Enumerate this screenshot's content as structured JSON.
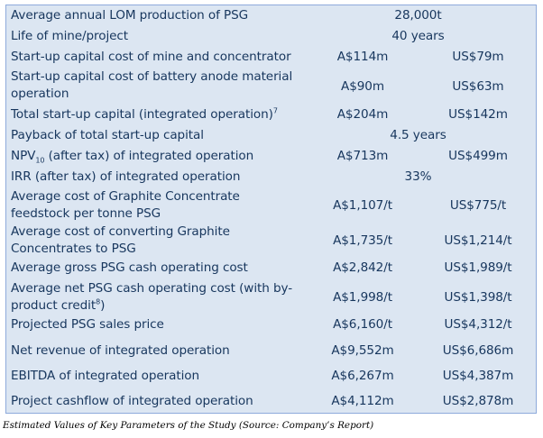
{
  "table": {
    "rows": [
      {
        "label": "Average annual LOM production of PSG",
        "merged": "28,000t"
      },
      {
        "label": "Life of mine/project",
        "merged": "40 years"
      },
      {
        "label": "Start-up capital cost of mine and concentrator",
        "aud": "A$114m",
        "usd": "US$79m"
      },
      {
        "label_line1": "Start-up capital cost of battery anode material",
        "label_line2": "operation",
        "aud": "A$90m",
        "usd": "US$63m"
      },
      {
        "label": "Total start-up capital (integrated operation)",
        "note": "7",
        "aud": "A$204m",
        "usd": "US$142m"
      },
      {
        "label": "Payback of total start-up capital",
        "merged": "4.5 years"
      },
      {
        "label_pre": "NPV",
        "sub": "10",
        "label_post": " (after tax) of integrated operation",
        "aud": "A$713m",
        "usd": "US$499m"
      },
      {
        "label": "IRR (after tax) of integrated operation",
        "merged": "33%"
      },
      {
        "label_line1": "Average cost of Graphite Concentrate",
        "label_line2": "feedstock per tonne PSG",
        "aud": "A$1,107/t",
        "usd": "US$775/t"
      },
      {
        "label_line1": "Average cost of converting Graphite",
        "label_line2": "Concentrates to PSG",
        "aud": "A$1,735/t",
        "usd": "US$1,214/t"
      },
      {
        "label": "Average gross PSG cash operating cost",
        "aud": "A$2,842/t",
        "usd": "US$1,989/t"
      },
      {
        "label_line1": "Average net PSG cash operating cost (with by-",
        "label_line2_pre": "product credit",
        "note": "8",
        "label_line2_post": ")",
        "aud": "A$1,998/t",
        "usd": "US$1,398/t"
      },
      {
        "label": "Projected PSG sales price",
        "aud": "A$6,160/t",
        "usd": "US$4,312/t"
      },
      {
        "label": "Net revenue of integrated operation",
        "aud": "A$9,552m",
        "usd": "US$6,686m"
      },
      {
        "label": "EBITDA of integrated operation",
        "aud": "A$6,267m",
        "usd": "US$4,387m"
      },
      {
        "label": "Project cashflow of integrated operation",
        "aud": "A$4,112m",
        "usd": "US$2,878m"
      }
    ]
  },
  "caption": "Estimated Values of Key Parameters of the Study (Source: Company’s Report)",
  "colors": {
    "background": "#dce6f2",
    "border": "#8eaadb",
    "text": "#17365d"
  }
}
